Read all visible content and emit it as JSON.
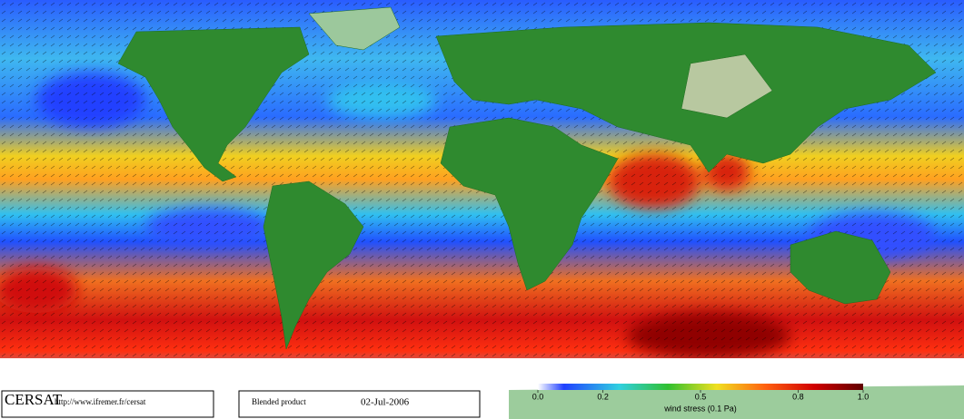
{
  "footer": {
    "logo": "CERSAT",
    "url": "http://www.ifremer.fr/cersat",
    "product": "Blended product",
    "date": "02-Jul-2006"
  },
  "colorbar": {
    "label": "wind stress (0.1 Pa)",
    "lim": [
      0,
      1
    ],
    "ticks": [
      {
        "value": 0,
        "label": "0.0"
      },
      0.2,
      0.5,
      0.8,
      {
        "value": 1,
        "label": "1.0"
      }
    ]
  }
}
